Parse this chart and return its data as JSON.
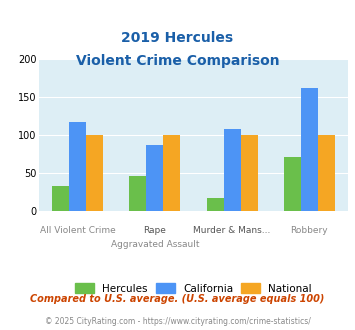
{
  "title_line1": "2019 Hercules",
  "title_line2": "Violent Crime Comparison",
  "cat_labels_top": [
    "",
    "Rape",
    "Murder & Mans...",
    ""
  ],
  "cat_labels_bot": [
    "All Violent Crime",
    "Aggravated Assault",
    "",
    "Robbery"
  ],
  "hercules": [
    33,
    46,
    18,
    72
  ],
  "california": [
    118,
    87,
    108,
    162
  ],
  "national": [
    100,
    100,
    100,
    100
  ],
  "hercules_color": "#6abf4b",
  "california_color": "#4d94f5",
  "national_color": "#f5a623",
  "ylim": [
    0,
    200
  ],
  "yticks": [
    0,
    50,
    100,
    150,
    200
  ],
  "background_color": "#ddeef5",
  "title_color": "#1a5fa8",
  "footnote1": "Compared to U.S. average. (U.S. average equals 100)",
  "footnote2": "© 2025 CityRating.com - https://www.cityrating.com/crime-statistics/",
  "footnote1_color": "#cc4400",
  "footnote2_color": "#888888",
  "legend_labels": [
    "Hercules",
    "California",
    "National"
  ],
  "bar_width": 0.22
}
